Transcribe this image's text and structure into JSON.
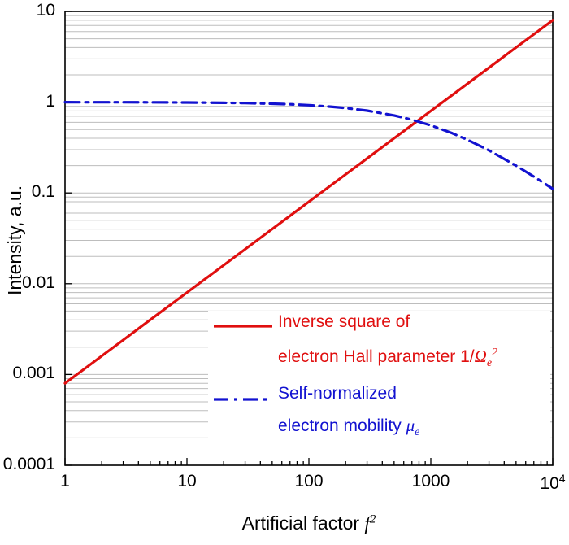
{
  "chart_data": {
    "type": "line",
    "title": "",
    "xlabel": {
      "text": "Artificial factor ",
      "var": "f",
      "sup": "2"
    },
    "ylabel": "Intensity, a.u.",
    "xscale": "log",
    "yscale": "log",
    "xlim": [
      1,
      10000
    ],
    "ylim": [
      0.0001,
      10
    ],
    "grid": "horizontal-minor",
    "colors": {
      "red": "#e00f0f",
      "blue": "#1212d0",
      "grid": "#bdbdbd",
      "axis": "#000000",
      "background": "#ffffff"
    },
    "x_ticks": [
      {
        "value": 1,
        "label": "1"
      },
      {
        "value": 10,
        "label": "10"
      },
      {
        "value": 100,
        "label": "100"
      },
      {
        "value": 1000,
        "label": "1000"
      },
      {
        "value": 10000,
        "label": "10",
        "sup": "4"
      }
    ],
    "y_ticks": [
      {
        "value": 10,
        "label": "10"
      },
      {
        "value": 1,
        "label": "1"
      },
      {
        "value": 0.1,
        "label": "0.1"
      },
      {
        "value": 0.01,
        "label": "0.01"
      },
      {
        "value": 0.001,
        "label": "0.001"
      },
      {
        "value": 0.0001,
        "label": "0.0001"
      }
    ],
    "series": [
      {
        "id": "inverse-square-hall-parameter",
        "name": "Inverse square of electron Hall parameter 1/Ωe2",
        "color": "#e00f0f",
        "style": "solid",
        "x": [
          1,
          1.5,
          2,
          3,
          5,
          7,
          10,
          15,
          20,
          30,
          50,
          70,
          100,
          150,
          200,
          300,
          500,
          700,
          1000,
          1500,
          2000,
          3000,
          5000,
          7000,
          10000
        ],
        "y": [
          0.0008,
          0.0012,
          0.0016,
          0.0024,
          0.004,
          0.0056,
          0.008,
          0.012,
          0.016,
          0.024,
          0.04,
          0.056,
          0.08,
          0.12,
          0.16,
          0.24,
          0.4,
          0.56,
          0.8,
          1.2,
          1.6,
          2.4,
          4.0,
          5.6,
          8.0
        ]
      },
      {
        "id": "self-normalized-electron-mobility",
        "name": "Self-normalized electron mobility μe",
        "color": "#1212d0",
        "style": "dash-dot",
        "x": [
          1,
          1.5,
          2,
          3,
          5,
          7,
          10,
          15,
          20,
          30,
          50,
          70,
          100,
          150,
          200,
          300,
          500,
          700,
          1000,
          1500,
          2000,
          3000,
          5000,
          7000,
          10000
        ],
        "y": [
          0.9992,
          0.9988,
          0.9984,
          0.9976,
          0.996,
          0.9944,
          0.992,
          0.988,
          0.984,
          0.9766,
          0.9615,
          0.947,
          0.9259,
          0.8929,
          0.8621,
          0.8065,
          0.7143,
          0.641,
          0.5556,
          0.4545,
          0.3846,
          0.2941,
          0.2,
          0.1515,
          0.1111
        ]
      }
    ],
    "legend": {
      "position": "lower-right-inside",
      "red": {
        "line1": "Inverse square of",
        "line2_pre": "electron Hall parameter 1/",
        "symbol": "Ω",
        "sub": "e",
        "sup": "2"
      },
      "blue": {
        "line1": "Self-normalized",
        "line2_pre": "electron mobility ",
        "symbol": "μ",
        "sub": "e"
      }
    }
  }
}
